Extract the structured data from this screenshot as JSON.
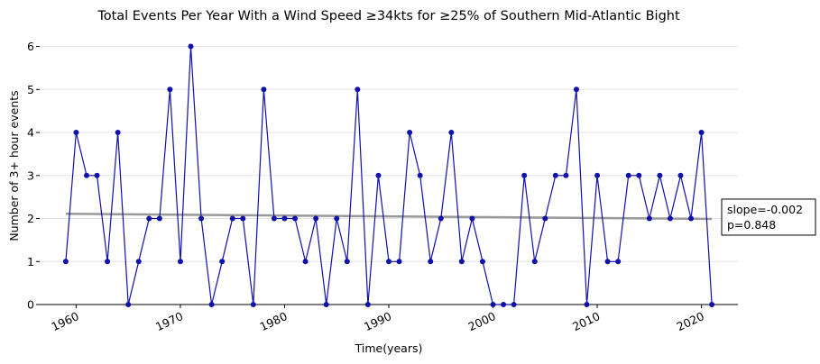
{
  "chart_data": {
    "type": "line",
    "title": "Total Events Per Year With a Wind Speed ≥34kts for ≥25% of Southern Mid-Atlantic Bight",
    "xlabel": "Time(years)",
    "ylabel": "Number of 3+ hour events",
    "xlim": [
      1956.5,
      2023.5
    ],
    "ylim": [
      0,
      6.2
    ],
    "x_ticks": [
      "1960",
      "1970",
      "1980",
      "1990",
      "2000",
      "2010",
      "2020"
    ],
    "y_ticks": [
      "0",
      "1",
      "2",
      "3",
      "4",
      "5",
      "6"
    ],
    "grid": "horizontal",
    "series": [
      {
        "color": "#1010aa",
        "x": [
          1959,
          1960,
          1961,
          1962,
          1963,
          1964,
          1965,
          1966,
          1967,
          1968,
          1969,
          1970,
          1971,
          1972,
          1973,
          1974,
          1975,
          1976,
          1977,
          1978,
          1979,
          1980,
          1981,
          1982,
          1983,
          1984,
          1985,
          1986,
          1987,
          1988,
          1989,
          1990,
          1991,
          1992,
          1993,
          1994,
          1995,
          1996,
          1997,
          1998,
          1999,
          2000,
          2001,
          2002,
          2003,
          2004,
          2005,
          2006,
          2007,
          2008,
          2009,
          2010,
          2011,
          2012,
          2013,
          2014,
          2015,
          2016,
          2017,
          2018,
          2019,
          2020,
          2021
        ],
        "values": [
          1,
          4,
          3,
          3,
          1,
          4,
          0,
          1,
          2,
          2,
          5,
          1,
          6,
          2,
          0,
          1,
          2,
          2,
          0,
          5,
          2,
          2,
          2,
          1,
          2,
          0,
          2,
          1,
          5,
          0,
          3,
          1,
          1,
          4,
          3,
          1,
          2,
          4,
          1,
          2,
          1,
          0,
          0,
          0,
          3,
          1,
          2,
          3,
          3,
          5,
          0,
          3,
          1,
          1,
          3,
          3,
          2,
          3,
          2,
          3,
          2,
          4,
          0
        ]
      }
    ],
    "trend": {
      "color": "#999999",
      "x": [
        1959,
        2021
      ],
      "values": [
        2.11,
        1.99
      ]
    },
    "annotation": {
      "lines": [
        "slope=-0.002",
        "p=0.848"
      ]
    }
  }
}
